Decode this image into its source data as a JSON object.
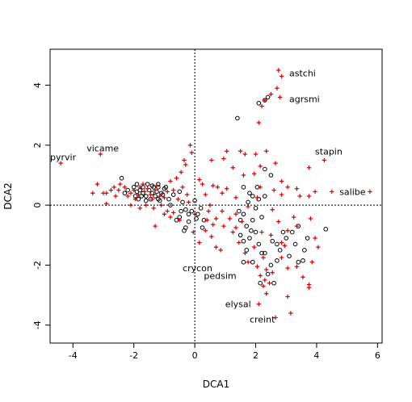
{
  "chart_data": {
    "type": "scatter",
    "title": "",
    "xlabel": "DCA1",
    "ylabel": "DCA2",
    "xlim": [
      -4.75,
      6.15
    ],
    "ylim": [
      -4.6,
      5.2
    ],
    "xticks": [
      -4,
      -2,
      0,
      2,
      4,
      6
    ],
    "yticks": [
      -4,
      -2,
      0,
      2,
      4
    ],
    "reference_lines": {
      "x": 0,
      "y": 0,
      "style": "dotted"
    },
    "grid": false,
    "legend": "none",
    "colors": {
      "sites": "#000000",
      "species": "#dd0000"
    },
    "series": [
      {
        "marker": "circle",
        "color": "#000000",
        "points": [
          [
            -1.2,
            0.6
          ],
          [
            -1.9,
            0.7
          ],
          [
            -1.8,
            0.5
          ],
          [
            -1.7,
            0.4
          ],
          [
            -1.6,
            0.3
          ],
          [
            -1.5,
            0.5
          ],
          [
            -1.4,
            0.4
          ],
          [
            -1.3,
            0.3
          ],
          [
            -1.2,
            0.2
          ],
          [
            -1.1,
            0.4
          ],
          [
            -1.95,
            0.3
          ],
          [
            -2.0,
            0.6
          ],
          [
            -2.2,
            0.5
          ],
          [
            -2.4,
            0.9
          ],
          [
            -2.3,
            0.4
          ],
          [
            -1.85,
            0.2
          ],
          [
            -1.7,
            0.6
          ],
          [
            -1.55,
            0.7
          ],
          [
            -1.45,
            0.2
          ],
          [
            -1.35,
            0.6
          ],
          [
            -1.25,
            0.45
          ],
          [
            -1.15,
            0.15
          ],
          [
            -1.05,
            0.35
          ],
          [
            -0.95,
            0.6
          ],
          [
            -0.85,
            0.2
          ],
          [
            -0.8,
            0.0
          ],
          [
            -0.7,
            0.35
          ],
          [
            -0.5,
            0.45
          ],
          [
            -0.4,
            0.1
          ],
          [
            -0.3,
            -0.15
          ],
          [
            -0.2,
            -0.3
          ],
          [
            -0.1,
            -0.2
          ],
          [
            0.0,
            0.15
          ],
          [
            0.1,
            -0.3
          ],
          [
            0.2,
            -0.1
          ],
          [
            0.3,
            -0.5
          ],
          [
            0.25,
            -0.75
          ],
          [
            -0.3,
            -0.75
          ],
          [
            -0.2,
            -0.55
          ],
          [
            -0.5,
            -0.4
          ],
          [
            -0.45,
            -0.2
          ],
          [
            -0.6,
            -0.5
          ],
          [
            -0.35,
            -0.85
          ],
          [
            0.05,
            -0.45
          ],
          [
            -1.6,
            0.15
          ],
          [
            -1.4,
            0.65
          ],
          [
            -1.2,
            0.7
          ],
          [
            -1.0,
            0.55
          ],
          [
            -1.9,
            0.45
          ],
          [
            -1.75,
            0.3
          ],
          [
            1.4,
            2.9
          ],
          [
            2.1,
            3.4
          ],
          [
            2.3,
            3.5
          ],
          [
            2.4,
            3.6
          ],
          [
            2.3,
            1.2
          ],
          [
            2.5,
            1.0
          ],
          [
            1.8,
            0.4
          ],
          [
            1.6,
            0.6
          ],
          [
            1.9,
            0.3
          ],
          [
            2.1,
            0.2
          ],
          [
            1.6,
            -0.3
          ],
          [
            1.7,
            -0.7
          ],
          [
            1.9,
            -0.5
          ],
          [
            2.0,
            -0.9
          ],
          [
            1.8,
            -1.1
          ],
          [
            1.6,
            -1.2
          ],
          [
            1.5,
            -1.0
          ],
          [
            2.1,
            -1.3
          ],
          [
            2.3,
            -1.6
          ],
          [
            1.9,
            -1.9
          ],
          [
            1.6,
            -1.9
          ],
          [
            2.5,
            -2.0
          ],
          [
            2.4,
            -2.3
          ],
          [
            2.6,
            -2.6
          ],
          [
            2.7,
            -1.3
          ],
          [
            2.9,
            -0.9
          ],
          [
            3.0,
            -1.1
          ],
          [
            3.2,
            -0.9
          ],
          [
            3.3,
            -1.3
          ],
          [
            2.8,
            -1.5
          ],
          [
            3.1,
            -1.7
          ],
          [
            3.4,
            -1.9
          ],
          [
            3.6,
            -1.5
          ],
          [
            3.7,
            -1.1
          ],
          [
            4.3,
            -0.8
          ],
          [
            3.4,
            -0.7
          ],
          [
            2.2,
            -1.6
          ],
          [
            1.7,
            -1.5
          ],
          [
            1.5,
            -0.5
          ],
          [
            2.2,
            -0.4
          ],
          [
            2.0,
            -0.1
          ],
          [
            1.75,
            0.1
          ],
          [
            2.05,
            0.6
          ],
          [
            2.3,
            0.3
          ],
          [
            2.7,
            -1.85
          ],
          [
            3.55,
            -1.85
          ],
          [
            2.15,
            -2.6
          ],
          [
            2.55,
            -1.2
          ],
          [
            1.45,
            -0.2
          ],
          [
            1.85,
            -0.85
          ]
        ]
      },
      {
        "marker": "plus",
        "color": "#dd0000",
        "points": [
          [
            -4.4,
            1.4
          ],
          [
            -3.1,
            1.7
          ],
          [
            -3.0,
            0.4
          ],
          [
            -3.2,
            0.7
          ],
          [
            -3.35,
            0.4
          ],
          [
            -2.9,
            0.4
          ],
          [
            -2.75,
            0.5
          ],
          [
            -2.6,
            0.3
          ],
          [
            -2.5,
            0.5
          ],
          [
            -2.65,
            0.6
          ],
          [
            -2.45,
            0.7
          ],
          [
            -2.3,
            0.6
          ],
          [
            -2.2,
            0.3
          ],
          [
            -2.1,
            0.4
          ],
          [
            -2.0,
            0.5
          ],
          [
            -1.95,
            0.2
          ],
          [
            -1.85,
            0.35
          ],
          [
            -1.8,
            0.6
          ],
          [
            -1.7,
            0.7
          ],
          [
            -1.65,
            0.45
          ],
          [
            -1.55,
            0.55
          ],
          [
            -1.45,
            0.35
          ],
          [
            -1.4,
            0.2
          ],
          [
            -1.3,
            0.5
          ],
          [
            -1.25,
            0.65
          ],
          [
            -1.15,
            0.3
          ],
          [
            -1.1,
            0.0
          ],
          [
            -1.0,
            0.25
          ],
          [
            -0.9,
            0.45
          ],
          [
            -0.8,
            0.8
          ],
          [
            -0.7,
            0.5
          ],
          [
            -0.6,
            0.9
          ],
          [
            -0.45,
            1.1
          ],
          [
            -0.4,
            0.6
          ],
          [
            -0.35,
            1.5
          ],
          [
            -0.3,
            1.35
          ],
          [
            -0.15,
            2.0
          ],
          [
            -0.1,
            1.75
          ],
          [
            -0.5,
            -0.5
          ],
          [
            -0.8,
            -0.4
          ],
          [
            -1.3,
            -0.7
          ],
          [
            -1.0,
            -0.3
          ],
          [
            -1.6,
            0.0
          ],
          [
            -1.8,
            -0.1
          ],
          [
            -2.1,
            0.0
          ],
          [
            -2.9,
            0.05
          ],
          [
            -1.35,
            -0.1
          ],
          [
            -0.9,
            -0.2
          ],
          [
            -0.7,
            -0.25
          ],
          [
            -0.55,
            0.2
          ],
          [
            -0.25,
            0.35
          ],
          [
            -0.2,
            0.1
          ],
          [
            0.0,
            -0.3
          ],
          [
            -0.05,
            -0.9
          ],
          [
            0.15,
            -1.25
          ],
          [
            0.35,
            -0.85
          ],
          [
            0.4,
            -0.5
          ],
          [
            0.45,
            -0.2
          ],
          [
            0.6,
            -0.65
          ],
          [
            0.7,
            -0.45
          ],
          [
            0.9,
            -0.2
          ],
          [
            0.95,
            -0.7
          ],
          [
            0.55,
            -1.05
          ],
          [
            0.7,
            -1.4
          ],
          [
            0.85,
            -1.5
          ],
          [
            0.5,
            0.0
          ],
          [
            0.6,
            0.65
          ],
          [
            0.35,
            0.35
          ],
          [
            0.25,
            0.7
          ],
          [
            0.15,
            0.85
          ],
          [
            0.55,
            1.5
          ],
          [
            0.75,
            0.6
          ],
          [
            0.9,
            0.4
          ],
          [
            1.05,
            0.55
          ],
          [
            0.95,
            1.55
          ],
          [
            1.05,
            1.8
          ],
          [
            1.5,
            1.8
          ],
          [
            1.65,
            1.7
          ],
          [
            1.6,
            1.0
          ],
          [
            2.0,
            1.7
          ],
          [
            2.15,
            1.3
          ],
          [
            2.35,
            1.8
          ],
          [
            2.65,
            1.4
          ],
          [
            2.85,
            0.8
          ],
          [
            3.05,
            0.6
          ],
          [
            2.85,
            0.35
          ],
          [
            2.6,
            0.5
          ],
          [
            3.35,
            0.55
          ],
          [
            3.45,
            0.3
          ],
          [
            3.75,
            1.25
          ],
          [
            3.75,
            0.3
          ],
          [
            3.95,
            0.45
          ],
          [
            4.25,
            1.5
          ],
          [
            4.5,
            0.45
          ],
          [
            5.75,
            0.45
          ],
          [
            2.75,
            4.5
          ],
          [
            2.85,
            4.3
          ],
          [
            2.7,
            3.9
          ],
          [
            2.5,
            3.7
          ],
          [
            2.2,
            3.3
          ],
          [
            2.1,
            2.75
          ],
          [
            2.3,
            3.5
          ],
          [
            2.8,
            3.6
          ],
          [
            1.25,
            1.25
          ],
          [
            1.95,
            1.05
          ],
          [
            2.05,
            0.25
          ],
          [
            1.75,
            -0.05
          ],
          [
            1.35,
            -0.3
          ],
          [
            1.15,
            -0.45
          ],
          [
            1.25,
            -0.9
          ],
          [
            1.35,
            -0.75
          ],
          [
            1.45,
            -1.25
          ],
          [
            1.65,
            -1.6
          ],
          [
            1.75,
            -1.9
          ],
          [
            2.05,
            -2.05
          ],
          [
            2.25,
            -1.75
          ],
          [
            2.35,
            -2.15
          ],
          [
            2.45,
            -2.6
          ],
          [
            2.55,
            -2.25
          ],
          [
            2.85,
            -1.75
          ],
          [
            3.05,
            -2.1
          ],
          [
            3.35,
            -2.05
          ],
          [
            3.55,
            -2.4
          ],
          [
            3.75,
            -2.65
          ],
          [
            3.75,
            -2.75
          ],
          [
            3.05,
            -3.05
          ],
          [
            3.15,
            -3.6
          ],
          [
            2.3,
            -2.5
          ],
          [
            2.15,
            -2.35
          ],
          [
            2.35,
            -2.95
          ],
          [
            2.1,
            -3.3
          ],
          [
            2.65,
            -3.75
          ],
          [
            2.85,
            -1.25
          ],
          [
            3.05,
            -0.85
          ],
          [
            3.35,
            -0.7
          ],
          [
            3.95,
            -1.1
          ],
          [
            4.05,
            -1.4
          ],
          [
            3.85,
            -1.9
          ],
          [
            2.5,
            -1.0
          ],
          [
            2.2,
            -0.9
          ],
          [
            3.8,
            -0.45
          ],
          [
            3.25,
            -0.4
          ],
          [
            2.75,
            -0.55
          ],
          [
            1.55,
            -0.55
          ],
          [
            1.35,
            0.25
          ],
          [
            2.95,
            -1.35
          ],
          [
            1.95,
            -1.4
          ],
          [
            2.25,
            -2.7
          ],
          [
            2.15,
            0.6
          ],
          [
            2.55,
            -0.15
          ]
        ]
      }
    ],
    "labels": [
      {
        "text": "astchi",
        "x": 3.1,
        "y": 4.4
      },
      {
        "text": "agrsmi",
        "x": 3.1,
        "y": 3.55
      },
      {
        "text": "stapin",
        "x": 3.95,
        "y": 1.8
      },
      {
        "text": "salibe",
        "x": 4.75,
        "y": 0.45
      },
      {
        "text": "pyrvir",
        "x": -4.75,
        "y": 1.6
      },
      {
        "text": "vicame",
        "x": -3.55,
        "y": 1.9
      },
      {
        "text": "crycon",
        "x": -0.4,
        "y": -2.1
      },
      {
        "text": "pedsim",
        "x": 0.3,
        "y": -2.35
      },
      {
        "text": "elysal",
        "x": 1.0,
        "y": -3.3
      },
      {
        "text": "creint",
        "x": 1.8,
        "y": -3.8
      }
    ]
  }
}
